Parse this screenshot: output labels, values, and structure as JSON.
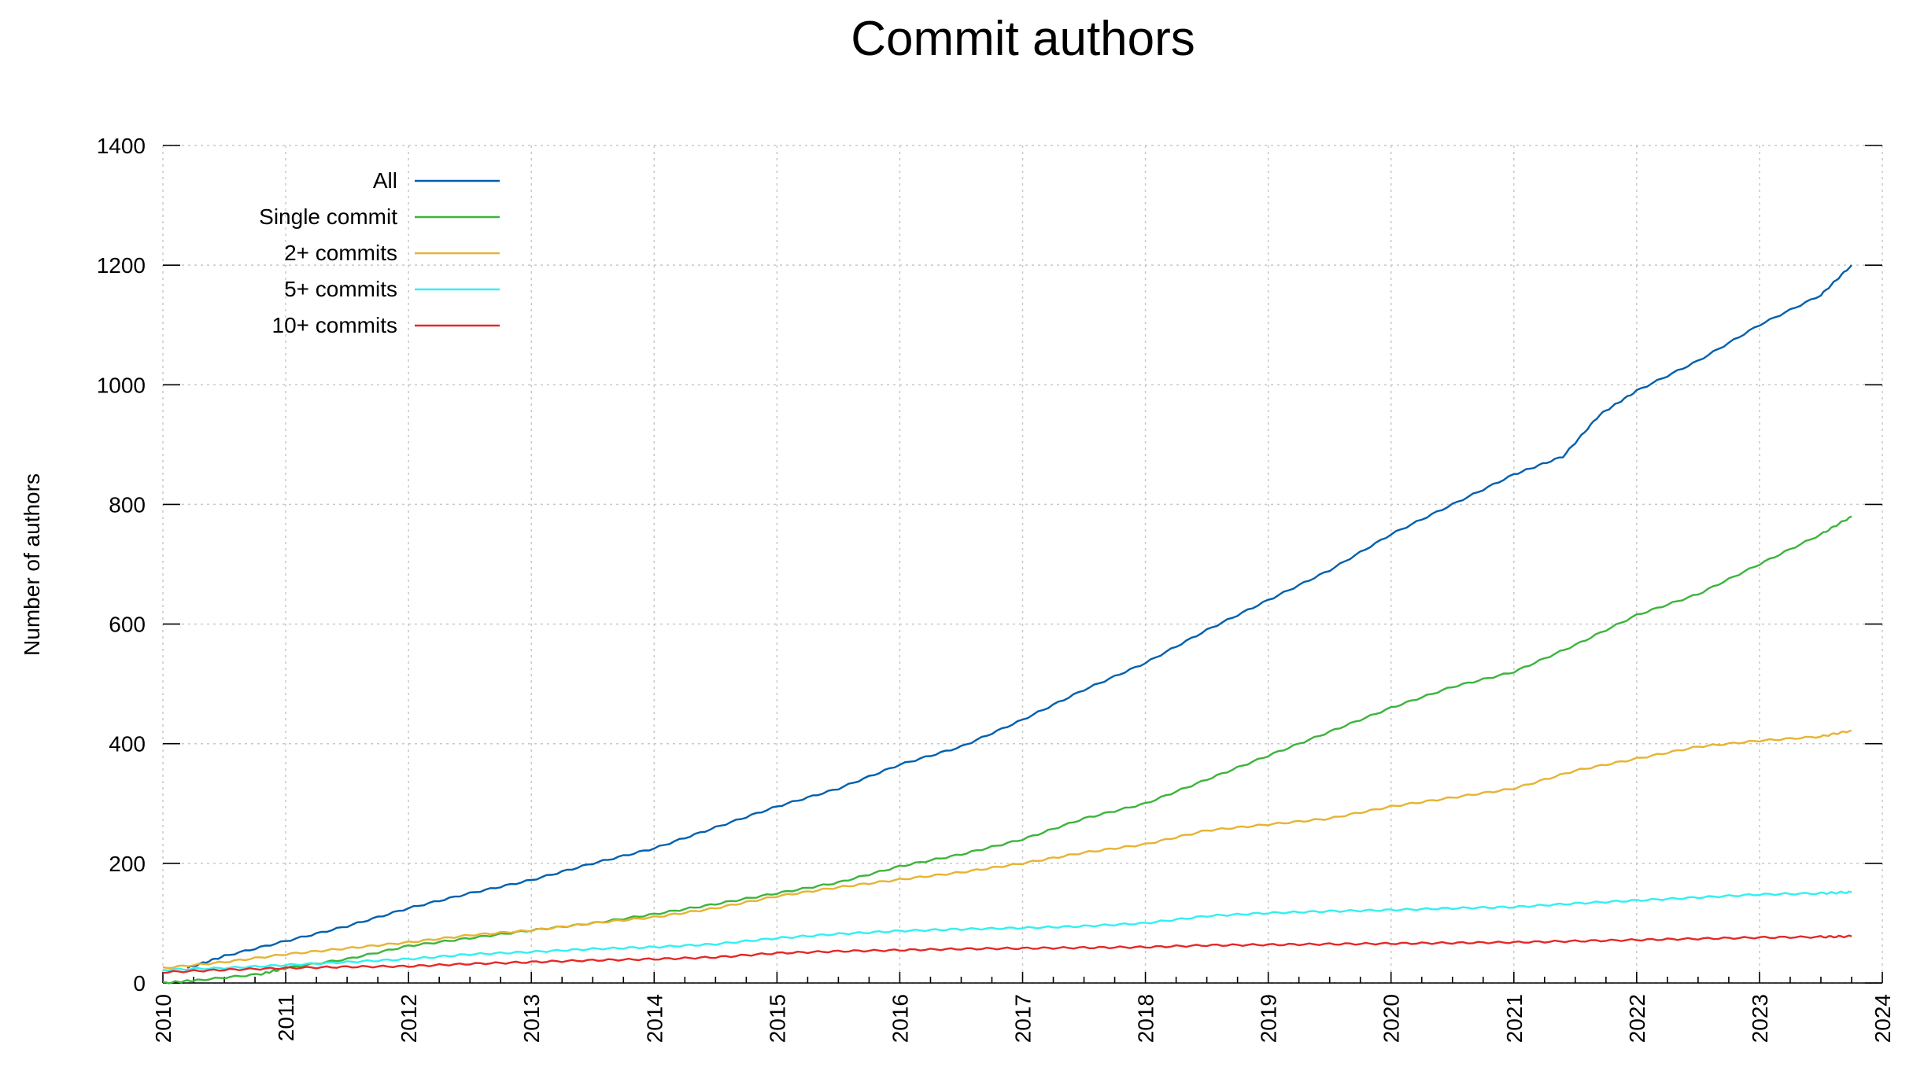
{
  "chart_data": {
    "type": "line",
    "title": "Commit authors",
    "xlabel": "",
    "ylabel": "Number of authors",
    "xlim": [
      2010,
      2024
    ],
    "ylim": [
      0,
      1400
    ],
    "x_ticks": [
      2010,
      2011,
      2012,
      2013,
      2014,
      2015,
      2016,
      2017,
      2018,
      2019,
      2020,
      2021,
      2022,
      2023,
      2024
    ],
    "y_ticks": [
      0,
      200,
      400,
      600,
      800,
      1000,
      1200,
      1400
    ],
    "grid": true,
    "legend_position": "top-left",
    "series": [
      {
        "name": "All",
        "color": "#0060ad",
        "points": [
          [
            2010.2,
            25
          ],
          [
            2010.5,
            45
          ],
          [
            2011,
            70
          ],
          [
            2011.5,
            95
          ],
          [
            2012,
            125
          ],
          [
            2012.5,
            150
          ],
          [
            2013,
            172
          ],
          [
            2013.5,
            200
          ],
          [
            2014,
            225
          ],
          [
            2014.5,
            260
          ],
          [
            2015,
            295
          ],
          [
            2015.5,
            325
          ],
          [
            2016,
            365
          ],
          [
            2016.5,
            395
          ],
          [
            2017,
            440
          ],
          [
            2017.5,
            490
          ],
          [
            2018,
            535
          ],
          [
            2018.5,
            590
          ],
          [
            2019,
            640
          ],
          [
            2019.5,
            690
          ],
          [
            2020,
            750
          ],
          [
            2020.5,
            800
          ],
          [
            2021,
            850
          ],
          [
            2021.4,
            880
          ],
          [
            2021.7,
            950
          ],
          [
            2022,
            990
          ],
          [
            2022.5,
            1040
          ],
          [
            2023,
            1100
          ],
          [
            2023.5,
            1150
          ],
          [
            2023.75,
            1200
          ]
        ]
      },
      {
        "name": "Single commit",
        "color": "#3cb43c",
        "points": [
          [
            2010,
            0
          ],
          [
            2010.3,
            5
          ],
          [
            2010.8,
            15
          ],
          [
            2011,
            25
          ],
          [
            2011.5,
            40
          ],
          [
            2012,
            62
          ],
          [
            2012.5,
            75
          ],
          [
            2013,
            88
          ],
          [
            2013.5,
            100
          ],
          [
            2014,
            115
          ],
          [
            2014.5,
            132
          ],
          [
            2015,
            150
          ],
          [
            2015.5,
            168
          ],
          [
            2016,
            195
          ],
          [
            2016.5,
            215
          ],
          [
            2017,
            240
          ],
          [
            2017.5,
            275
          ],
          [
            2018,
            300
          ],
          [
            2018.5,
            340
          ],
          [
            2019,
            380
          ],
          [
            2019.5,
            420
          ],
          [
            2020,
            460
          ],
          [
            2020.5,
            495
          ],
          [
            2021,
            520
          ],
          [
            2021.5,
            565
          ],
          [
            2022,
            615
          ],
          [
            2022.5,
            650
          ],
          [
            2023,
            700
          ],
          [
            2023.5,
            750
          ],
          [
            2023.75,
            780
          ]
        ]
      },
      {
        "name": "2+ commits",
        "color": "#e6b432",
        "points": [
          [
            2010,
            25
          ],
          [
            2010.5,
            35
          ],
          [
            2011,
            48
          ],
          [
            2011.5,
            58
          ],
          [
            2012,
            68
          ],
          [
            2012.5,
            80
          ],
          [
            2013,
            88
          ],
          [
            2013.5,
            100
          ],
          [
            2014,
            110
          ],
          [
            2014.5,
            125
          ],
          [
            2015,
            145
          ],
          [
            2015.5,
            160
          ],
          [
            2016,
            173
          ],
          [
            2016.5,
            185
          ],
          [
            2017,
            200
          ],
          [
            2017.5,
            218
          ],
          [
            2018,
            232
          ],
          [
            2018.5,
            255
          ],
          [
            2019,
            265
          ],
          [
            2019.5,
            275
          ],
          [
            2020,
            295
          ],
          [
            2020.5,
            310
          ],
          [
            2021,
            325
          ],
          [
            2021.5,
            355
          ],
          [
            2022,
            375
          ],
          [
            2022.5,
            395
          ],
          [
            2023,
            405
          ],
          [
            2023.5,
            412
          ],
          [
            2023.75,
            422
          ]
        ]
      },
      {
        "name": "5+ commits",
        "color": "#32f0f0",
        "points": [
          [
            2010,
            22
          ],
          [
            2010.5,
            25
          ],
          [
            2011,
            30
          ],
          [
            2011.5,
            35
          ],
          [
            2012,
            40
          ],
          [
            2012.5,
            48
          ],
          [
            2013,
            52
          ],
          [
            2013.5,
            57
          ],
          [
            2014,
            60
          ],
          [
            2014.5,
            65
          ],
          [
            2015,
            75
          ],
          [
            2015.5,
            82
          ],
          [
            2016,
            87
          ],
          [
            2016.5,
            90
          ],
          [
            2017,
            92
          ],
          [
            2017.5,
            95
          ],
          [
            2018,
            100
          ],
          [
            2018.5,
            112
          ],
          [
            2019,
            117
          ],
          [
            2019.5,
            120
          ],
          [
            2020,
            122
          ],
          [
            2020.5,
            125
          ],
          [
            2021,
            127
          ],
          [
            2021.5,
            133
          ],
          [
            2022,
            138
          ],
          [
            2022.5,
            143
          ],
          [
            2023,
            148
          ],
          [
            2023.5,
            150
          ],
          [
            2023.75,
            152
          ]
        ]
      },
      {
        "name": "10+ commits",
        "color": "#e62828",
        "points": [
          [
            2010,
            18
          ],
          [
            2010.5,
            22
          ],
          [
            2011,
            25
          ],
          [
            2011.5,
            27
          ],
          [
            2012,
            28
          ],
          [
            2012.5,
            32
          ],
          [
            2013,
            35
          ],
          [
            2013.5,
            38
          ],
          [
            2014,
            40
          ],
          [
            2014.5,
            43
          ],
          [
            2015,
            50
          ],
          [
            2015.5,
            53
          ],
          [
            2016,
            55
          ],
          [
            2016.5,
            57
          ],
          [
            2017,
            58
          ],
          [
            2017.5,
            59
          ],
          [
            2018,
            60
          ],
          [
            2018.5,
            63
          ],
          [
            2019,
            64
          ],
          [
            2019.5,
            65
          ],
          [
            2020,
            66
          ],
          [
            2020.5,
            67
          ],
          [
            2021,
            68
          ],
          [
            2021.5,
            70
          ],
          [
            2022,
            72
          ],
          [
            2022.5,
            74
          ],
          [
            2023,
            76
          ],
          [
            2023.5,
            77
          ],
          [
            2023.75,
            78
          ]
        ]
      }
    ]
  }
}
